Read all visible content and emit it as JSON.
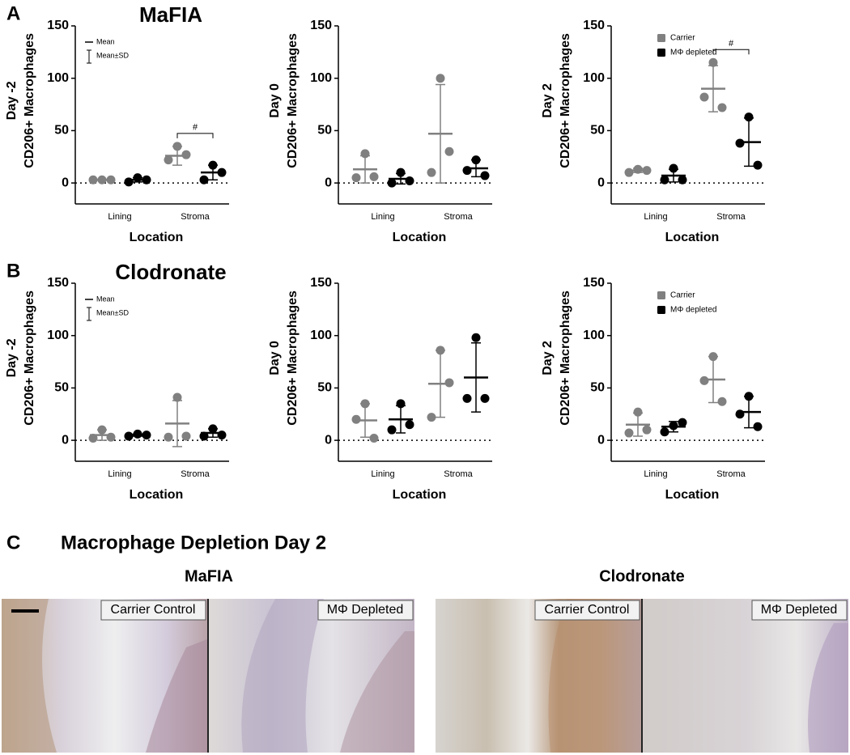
{
  "chart_data": [
    {
      "type": "dot",
      "panel": "A",
      "title": "MaFIA",
      "ylabel": [
        "Day -2",
        "CD206+ Macrophages"
      ],
      "xlabel": "Location",
      "categories": [
        "Lining",
        "Stroma"
      ],
      "ylim": [
        -20,
        150
      ],
      "yticks": [
        0,
        50,
        100,
        150
      ],
      "stat_legend": {
        "mean": "Mean",
        "sd": "Mean±SD"
      },
      "annotations": [
        {
          "text": "#",
          "category": "Stroma"
        }
      ],
      "series": [
        {
          "color": "#808080",
          "values": [
            [
              3,
              3,
              3
            ],
            [
              22,
              35,
              27
            ]
          ],
          "mean": [
            3,
            26
          ],
          "sd": [
            0.5,
            9
          ]
        },
        {
          "color": "#000000",
          "values": [
            [
              1,
              5,
              3
            ],
            [
              3,
              17,
              10
            ]
          ],
          "mean": [
            3,
            10
          ],
          "sd": [
            2,
            7
          ]
        }
      ]
    },
    {
      "type": "dot",
      "ylabel": [
        "Day 0",
        "CD206+ Macrophages"
      ],
      "xlabel": "Location",
      "categories": [
        "Lining",
        "Stroma"
      ],
      "ylim": [
        -20,
        150
      ],
      "yticks": [
        0,
        50,
        100,
        150
      ],
      "series": [
        {
          "color": "#808080",
          "values": [
            [
              5,
              28,
              6
            ],
            [
              10,
              100,
              30
            ]
          ],
          "mean": [
            13,
            47
          ],
          "sd": [
            13,
            47
          ]
        },
        {
          "color": "#000000",
          "values": [
            [
              0,
              10,
              2
            ],
            [
              12,
              22,
              7
            ]
          ],
          "mean": [
            4,
            14
          ],
          "sd": [
            5,
            8
          ]
        }
      ]
    },
    {
      "type": "dot",
      "ylabel": [
        "Day 2",
        "CD206+ Macrophages"
      ],
      "xlabel": "Location",
      "categories": [
        "Lining",
        "Stroma"
      ],
      "ylim": [
        -20,
        150
      ],
      "yticks": [
        0,
        50,
        100,
        150
      ],
      "annotations": [
        {
          "text": "#",
          "category": "Stroma"
        }
      ],
      "series": [
        {
          "name": "Carrier",
          "color": "#808080",
          "values": [
            [
              10,
              13,
              12
            ],
            [
              82,
              115,
              72
            ]
          ],
          "mean": [
            12,
            90
          ],
          "sd": [
            2,
            22
          ]
        },
        {
          "name": "MΦ depleted",
          "color": "#000000",
          "values": [
            [
              3,
              14,
              3
            ],
            [
              38,
              63,
              17
            ]
          ],
          "mean": [
            7,
            39
          ],
          "sd": [
            6,
            23
          ]
        }
      ]
    },
    {
      "type": "dot",
      "panel": "B",
      "title": "Clodronate",
      "ylabel": [
        "Day -2",
        "CD206+ Macrophages"
      ],
      "xlabel": "Location",
      "categories": [
        "Lining",
        "Stroma"
      ],
      "ylim": [
        -20,
        150
      ],
      "yticks": [
        0,
        50,
        100,
        150
      ],
      "stat_legend": {
        "mean": "Mean",
        "sd": "Mean±SD"
      },
      "series": [
        {
          "color": "#808080",
          "values": [
            [
              2,
              10,
              3
            ],
            [
              3,
              41,
              4
            ]
          ],
          "mean": [
            5,
            16
          ],
          "sd": [
            5,
            22
          ]
        },
        {
          "color": "#000000",
          "values": [
            [
              4,
              6,
              5
            ],
            [
              4,
              11,
              5
            ]
          ],
          "mean": [
            5,
            7
          ],
          "sd": [
            1,
            4
          ]
        }
      ]
    },
    {
      "type": "dot",
      "ylabel": [
        "Day 0",
        "CD206+ Macrophages"
      ],
      "xlabel": "Location",
      "categories": [
        "Lining",
        "Stroma"
      ],
      "ylim": [
        -20,
        150
      ],
      "yticks": [
        0,
        50,
        100,
        150
      ],
      "series": [
        {
          "color": "#808080",
          "values": [
            [
              20,
              35,
              2
            ],
            [
              22,
              86,
              55
            ]
          ],
          "mean": [
            19,
            54
          ],
          "sd": [
            16,
            32
          ]
        },
        {
          "color": "#000000",
          "values": [
            [
              10,
              35,
              15
            ],
            [
              40,
              98,
              40
            ]
          ],
          "mean": [
            20,
            60
          ],
          "sd": [
            13,
            33
          ]
        }
      ]
    },
    {
      "type": "dot",
      "ylabel": [
        "Day 2",
        "CD206+ Macrophages"
      ],
      "xlabel": "Location",
      "categories": [
        "Lining",
        "Stroma"
      ],
      "ylim": [
        -20,
        150
      ],
      "yticks": [
        0,
        50,
        100,
        150
      ],
      "series": [
        {
          "name": "Carrier",
          "color": "#808080",
          "values": [
            [
              7,
              27,
              10
            ],
            [
              57,
              80,
              37
            ]
          ],
          "mean": [
            15,
            58
          ],
          "sd": [
            11,
            22
          ]
        },
        {
          "name": "MΦ depleted",
          "color": "#000000",
          "values": [
            [
              8,
              14,
              17
            ],
            [
              25,
              42,
              13
            ]
          ],
          "mean": [
            13,
            27
          ],
          "sd": [
            5,
            15
          ]
        }
      ]
    }
  ],
  "panel_c": {
    "label": "C",
    "title": "Macrophage Depletion Day 2",
    "groups": [
      {
        "title": "MaFIA",
        "images": [
          "Carrier Control",
          "MΦ Depleted"
        ]
      },
      {
        "title": "Clodronate",
        "images": [
          "Carrier Control",
          "MΦ Depleted"
        ]
      }
    ]
  }
}
